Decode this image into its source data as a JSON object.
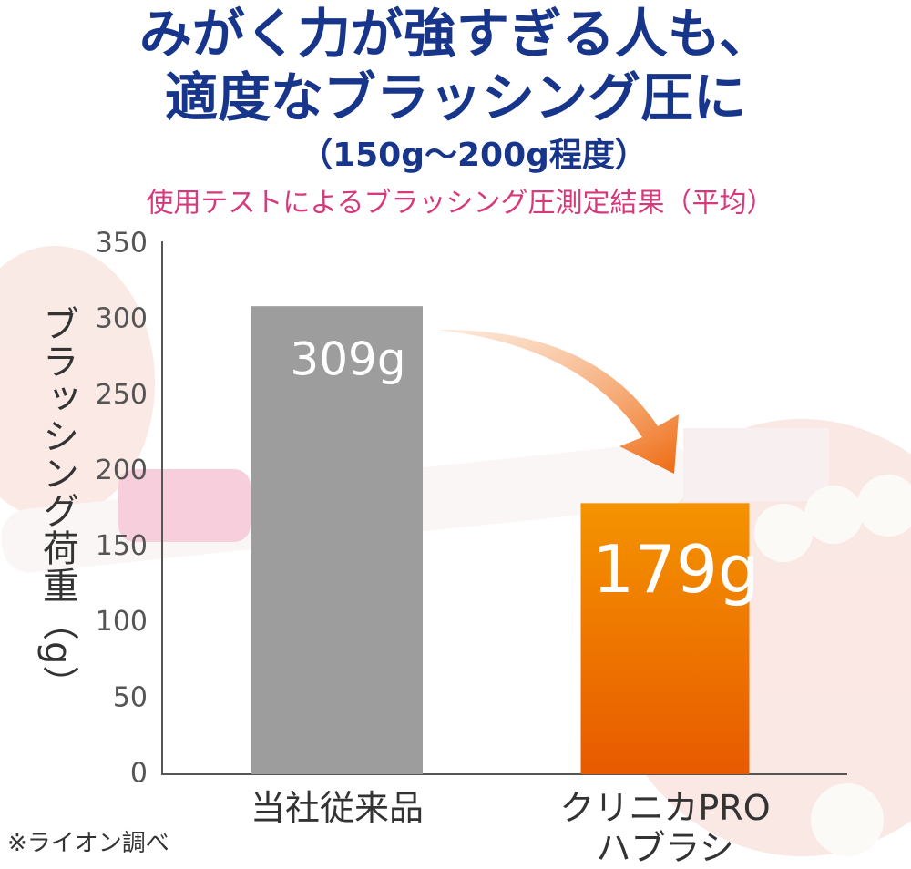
{
  "chart_data": {
    "type": "bar",
    "title": [
      "みがく力が強すぎる人も、",
      "適度なブラッシング圧に"
    ],
    "subtitle": "（150g〜200g程度）",
    "caption": "使用テストによるブラッシング圧測定結果（平均）",
    "y_label": "ブラッシング荷重（g）",
    "categories": [
      "当社従来品",
      "クリニカPRO\nハブラシ"
    ],
    "values": [
      309,
      179
    ],
    "value_labels": [
      "309g",
      "179g"
    ],
    "colors": [
      "#9d9d9d",
      "#ee7200"
    ],
    "ylim": [
      0,
      350
    ],
    "yticks": [
      0,
      50,
      100,
      150,
      200,
      250,
      300,
      350
    ],
    "grid": false,
    "footnote": "※ライオン調べ"
  }
}
